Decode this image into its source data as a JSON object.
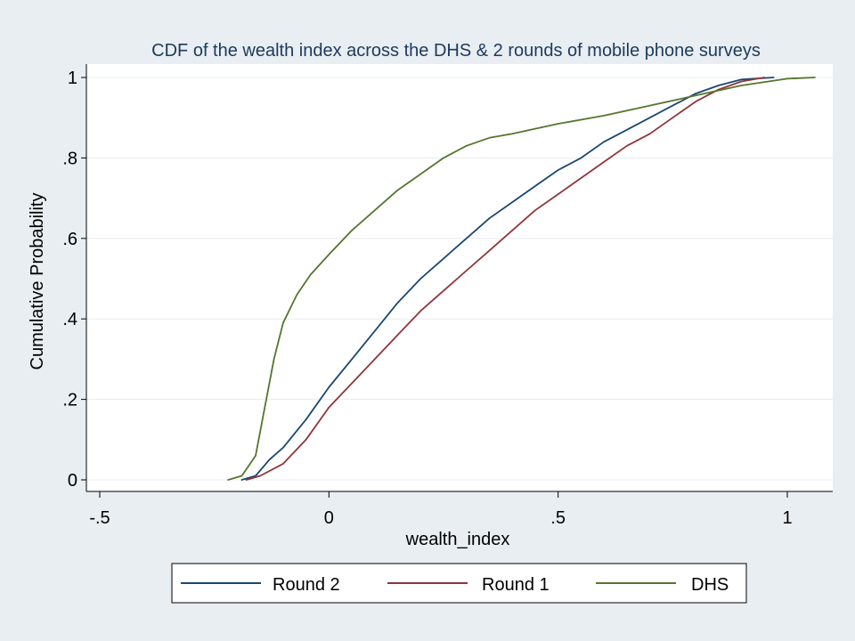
{
  "chart_data": {
    "type": "line",
    "title": "CDF of the wealth index across the DHS & 2 rounds of mobile phone surveys",
    "xlabel": "wealth_index",
    "ylabel": "Cumulative Probability",
    "xlim": [
      -0.5,
      1.1
    ],
    "ylim": [
      0,
      1
    ],
    "x_ticks": [
      {
        "value": -0.5,
        "label": "-.5"
      },
      {
        "value": 0,
        "label": "0"
      },
      {
        "value": 0.5,
        "label": ".5"
      },
      {
        "value": 1,
        "label": "1"
      }
    ],
    "y_ticks": [
      {
        "value": 0,
        "label": "0"
      },
      {
        "value": 0.2,
        "label": ".2"
      },
      {
        "value": 0.4,
        "label": ".4"
      },
      {
        "value": 0.6,
        "label": ".6"
      },
      {
        "value": 0.8,
        "label": ".8"
      },
      {
        "value": 1,
        "label": "1"
      }
    ],
    "grid": true,
    "legend_position": "bottom",
    "series": [
      {
        "name": "Round 2",
        "color": "#1a476f",
        "points": [
          [
            -0.19,
            0
          ],
          [
            -0.16,
            0.01
          ],
          [
            -0.13,
            0.05
          ],
          [
            -0.1,
            0.08
          ],
          [
            -0.05,
            0.15
          ],
          [
            0,
            0.23
          ],
          [
            0.05,
            0.3
          ],
          [
            0.1,
            0.37
          ],
          [
            0.15,
            0.44
          ],
          [
            0.2,
            0.5
          ],
          [
            0.25,
            0.55
          ],
          [
            0.3,
            0.6
          ],
          [
            0.35,
            0.65
          ],
          [
            0.4,
            0.69
          ],
          [
            0.45,
            0.73
          ],
          [
            0.5,
            0.77
          ],
          [
            0.55,
            0.8
          ],
          [
            0.6,
            0.84
          ],
          [
            0.65,
            0.87
          ],
          [
            0.7,
            0.9
          ],
          [
            0.75,
            0.93
          ],
          [
            0.8,
            0.96
          ],
          [
            0.85,
            0.98
          ],
          [
            0.9,
            0.995
          ],
          [
            0.97,
            1
          ]
        ]
      },
      {
        "name": "Round 1",
        "color": "#90353b",
        "points": [
          [
            -0.18,
            0
          ],
          [
            -0.15,
            0.01
          ],
          [
            -0.1,
            0.04
          ],
          [
            -0.05,
            0.1
          ],
          [
            0,
            0.18
          ],
          [
            0.05,
            0.24
          ],
          [
            0.1,
            0.3
          ],
          [
            0.15,
            0.36
          ],
          [
            0.2,
            0.42
          ],
          [
            0.25,
            0.47
          ],
          [
            0.3,
            0.52
          ],
          [
            0.35,
            0.57
          ],
          [
            0.4,
            0.62
          ],
          [
            0.45,
            0.67
          ],
          [
            0.5,
            0.71
          ],
          [
            0.55,
            0.75
          ],
          [
            0.6,
            0.79
          ],
          [
            0.65,
            0.83
          ],
          [
            0.7,
            0.86
          ],
          [
            0.75,
            0.9
          ],
          [
            0.8,
            0.94
          ],
          [
            0.85,
            0.97
          ],
          [
            0.9,
            0.99
          ],
          [
            0.95,
            1
          ]
        ]
      },
      {
        "name": "DHS",
        "color": "#55752f",
        "points": [
          [
            -0.22,
            0
          ],
          [
            -0.19,
            0.01
          ],
          [
            -0.16,
            0.06
          ],
          [
            -0.14,
            0.18
          ],
          [
            -0.12,
            0.3
          ],
          [
            -0.1,
            0.39
          ],
          [
            -0.07,
            0.46
          ],
          [
            -0.04,
            0.51
          ],
          [
            0,
            0.56
          ],
          [
            0.05,
            0.62
          ],
          [
            0.1,
            0.67
          ],
          [
            0.15,
            0.72
          ],
          [
            0.2,
            0.76
          ],
          [
            0.25,
            0.8
          ],
          [
            0.3,
            0.83
          ],
          [
            0.35,
            0.85
          ],
          [
            0.4,
            0.86
          ],
          [
            0.5,
            0.885
          ],
          [
            0.6,
            0.905
          ],
          [
            0.7,
            0.93
          ],
          [
            0.8,
            0.955
          ],
          [
            0.9,
            0.98
          ],
          [
            1.0,
            0.997
          ],
          [
            1.06,
            1
          ]
        ]
      }
    ]
  }
}
